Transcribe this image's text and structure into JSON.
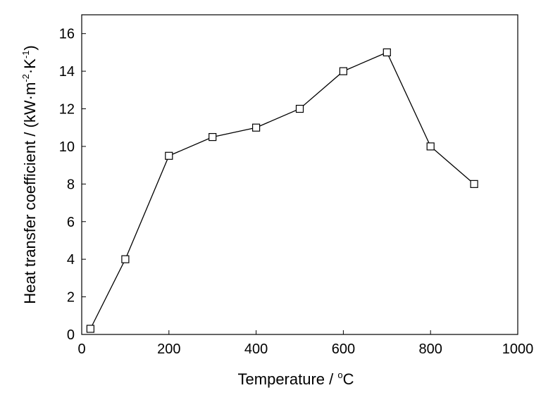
{
  "chart_data": {
    "type": "line",
    "title": "",
    "xlabel": "Temperature / °C",
    "xlabel_parts": {
      "main": "Temperature / ",
      "degree": "o",
      "unit": "C"
    },
    "ylabel": "Heat transfer coefficient / (kW·m-2·K-1)",
    "ylabel_parts": {
      "main": "Heat transfer coefficient / (kW",
      "dot1": "·",
      "m": "m",
      "exp1": "-2",
      "dot2": "·",
      "k": "K",
      "exp2": "-1",
      "close": ")"
    },
    "xlim": [
      0,
      1000
    ],
    "ylim": [
      0,
      17
    ],
    "x_ticks": [
      0,
      200,
      400,
      600,
      800,
      1000
    ],
    "y_ticks": [
      0,
      2,
      4,
      6,
      8,
      10,
      12,
      14,
      16
    ],
    "grid": false,
    "legend": "none",
    "marker": "open-square",
    "series": [
      {
        "x": [
          20,
          100,
          200,
          300,
          400,
          500,
          600,
          700,
          800,
          900
        ],
        "y": [
          0.3,
          4,
          9.5,
          10.5,
          11,
          12,
          14,
          15,
          10,
          8
        ]
      }
    ],
    "line_color": "#000000",
    "marker_fill": "#ffffff"
  }
}
